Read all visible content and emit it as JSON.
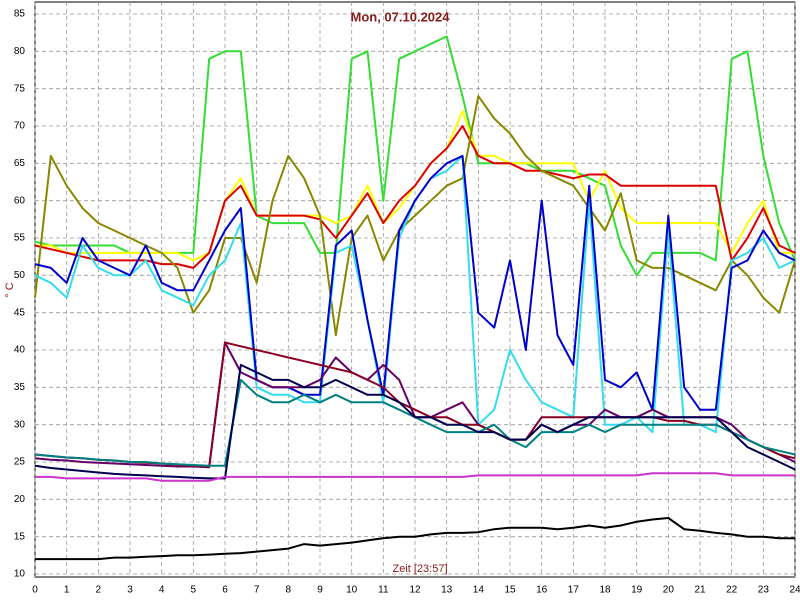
{
  "chart_data": {
    "type": "line",
    "title": "Mon, 07.10.2024",
    "y_label": "° C",
    "x_label": "Zeit [23:57]",
    "xlim": [
      0,
      24
    ],
    "ylim": [
      10,
      85
    ],
    "xticks": [
      0,
      1,
      2,
      3,
      4,
      5,
      6,
      7,
      8,
      9,
      10,
      11,
      12,
      13,
      14,
      15,
      16,
      17,
      18,
      19,
      20,
      21,
      22,
      23,
      24
    ],
    "yticks": [
      10,
      15,
      20,
      25,
      30,
      35,
      40,
      45,
      50,
      55,
      60,
      65,
      70,
      75,
      80,
      85
    ],
    "grid": true,
    "x": [
      0,
      0.5,
      1,
      1.5,
      2,
      2.5,
      3,
      3.5,
      4,
      4.5,
      5,
      5.5,
      6,
      6.5,
      7,
      7.5,
      8,
      8.5,
      9,
      9.5,
      10,
      10.5,
      11,
      11.5,
      12,
      12.5,
      13,
      13.5,
      14,
      14.5,
      15,
      15.5,
      16,
      16.5,
      17,
      17.5,
      18,
      18.5,
      19,
      19.5,
      20,
      20.5,
      21,
      21.5,
      22,
      22.5,
      23,
      23.5,
      24
    ],
    "series": [
      {
        "color": "#33dd33",
        "values": [
          54.5,
          54,
          54,
          54,
          54,
          54,
          53,
          53,
          53,
          53,
          53,
          79,
          80,
          80,
          58,
          57,
          57,
          57,
          53,
          53,
          79,
          80,
          60,
          79,
          80,
          81,
          82,
          74,
          65,
          65,
          65,
          65,
          64,
          64,
          64,
          63,
          62,
          54,
          50,
          53,
          53,
          53,
          53,
          52,
          79,
          80,
          66,
          57,
          52
        ]
      },
      {
        "color": "#ffff00",
        "values": [
          54,
          54,
          53,
          53,
          53,
          53,
          53,
          53,
          53,
          53,
          52,
          53,
          60,
          63,
          58,
          58,
          58,
          58,
          58,
          57,
          58,
          62,
          57,
          59,
          62,
          65,
          67,
          72,
          66,
          66,
          65,
          65,
          65,
          65,
          65,
          60,
          64,
          59,
          57,
          57,
          57,
          57,
          57,
          57,
          53,
          57,
          60,
          53,
          53
        ]
      },
      {
        "color": "#dd0000",
        "values": [
          54,
          53.5,
          53,
          52.5,
          52,
          52,
          52,
          52,
          51.5,
          51.5,
          51,
          53,
          60,
          62,
          58,
          58,
          58,
          58,
          57.5,
          55,
          58,
          61,
          57,
          60,
          62,
          65,
          67,
          70,
          66,
          65,
          65,
          64,
          64,
          63.5,
          63,
          63.5,
          63.5,
          62,
          62,
          62,
          62,
          62,
          62,
          62,
          52,
          55,
          59,
          54,
          53
        ]
      },
      {
        "color": "#888800",
        "values": [
          47,
          66,
          62,
          59,
          57,
          56,
          55,
          54,
          53,
          51,
          45,
          48,
          55,
          55,
          49,
          60,
          66,
          63,
          58,
          42,
          55,
          58,
          52,
          56,
          58,
          60,
          62,
          63,
          74,
          71,
          69,
          66,
          64,
          63,
          62,
          59,
          56,
          61,
          52,
          51,
          51,
          50,
          49,
          48,
          52,
          50,
          47,
          45,
          52
        ]
      },
      {
        "color": "#33ddee",
        "values": [
          50,
          49,
          47,
          54,
          51,
          50,
          50,
          52,
          48,
          47,
          46,
          50,
          52,
          57,
          35,
          34,
          34,
          33,
          33,
          53,
          54,
          44,
          33,
          55,
          60,
          63,
          64,
          66,
          30,
          32,
          40,
          36,
          33,
          32,
          31,
          60,
          30,
          30,
          31,
          29,
          56,
          30,
          30,
          29,
          52,
          53,
          55,
          51,
          52
        ]
      },
      {
        "color": "#0000cc",
        "values": [
          51.5,
          51,
          49,
          55,
          52,
          51,
          50,
          54,
          49,
          48,
          48,
          52,
          56,
          59,
          36,
          35,
          35,
          34,
          34,
          54,
          56,
          44,
          34,
          56,
          60,
          63,
          65,
          66,
          45,
          43,
          52,
          40,
          60,
          42,
          38,
          62,
          36,
          35,
          37,
          32,
          58,
          35,
          32,
          32,
          51,
          52,
          56,
          53,
          52
        ]
      },
      {
        "color": "#660066",
        "values": [
          25.5,
          25.3,
          25.2,
          25,
          24.9,
          24.8,
          24.7,
          24.6,
          24.5,
          24.4,
          24.4,
          24.3,
          41,
          37,
          36,
          35,
          35,
          35,
          36,
          39,
          37,
          36,
          38,
          36,
          31,
          31,
          32,
          33,
          30,
          29,
          28,
          28,
          30,
          29,
          30,
          30,
          32,
          31,
          31,
          32,
          31,
          31,
          31,
          31,
          30,
          28,
          27,
          26,
          25
        ]
      },
      {
        "color": "#880022",
        "values": [
          26,
          25.8,
          25.6,
          25.5,
          25.3,
          25.2,
          25,
          24.9,
          24.8,
          24.6,
          24.5,
          24.4,
          41,
          40.5,
          40,
          39.5,
          39,
          38.5,
          38,
          37.5,
          37,
          36,
          35,
          33,
          32,
          31,
          31,
          30,
          30,
          29,
          28,
          28,
          31,
          31,
          31,
          31,
          31,
          31,
          31,
          31,
          30.5,
          30.5,
          30,
          30,
          29,
          28,
          27,
          26,
          25.5
        ]
      },
      {
        "color": "#008080",
        "values": [
          26,
          25.8,
          25.6,
          25.5,
          25.3,
          25.2,
          25,
          25,
          24.8,
          24.7,
          24.6,
          24.5,
          24.5,
          36,
          34,
          33,
          33,
          34,
          33,
          34,
          33,
          33,
          33,
          32,
          31,
          30,
          29,
          29,
          29,
          30,
          28,
          27,
          29,
          29,
          29,
          30,
          29,
          30,
          30,
          30,
          30,
          30,
          30,
          30,
          29,
          28,
          27,
          26.5,
          26
        ]
      },
      {
        "color": "#000050",
        "values": [
          24.5,
          24.2,
          24,
          23.8,
          23.6,
          23.4,
          23.3,
          23.2,
          23.1,
          23,
          22.9,
          22.8,
          22.8,
          38,
          37,
          36,
          36,
          35,
          35,
          36,
          35,
          34,
          34,
          33,
          31,
          31,
          30,
          30,
          29,
          29,
          28,
          28,
          30,
          29,
          30,
          31,
          31,
          31,
          31,
          31,
          31,
          31,
          31,
          31,
          29,
          27,
          26,
          25,
          24
        ]
      },
      {
        "color": "#cc33cc",
        "values": [
          23,
          23,
          22.8,
          22.8,
          22.8,
          22.8,
          22.8,
          22.8,
          22.5,
          22.5,
          22.5,
          22.5,
          23,
          23,
          23,
          23,
          23,
          23,
          23,
          23,
          23,
          23,
          23,
          23,
          23,
          23,
          23,
          23,
          23.2,
          23.2,
          23.2,
          23.2,
          23.2,
          23.2,
          23.2,
          23.2,
          23.2,
          23.2,
          23.2,
          23.5,
          23.5,
          23.5,
          23.5,
          23.5,
          23.2,
          23.2,
          23.2,
          23.2,
          23.2
        ]
      },
      {
        "color": "#000000",
        "values": [
          12,
          12,
          12,
          12,
          12,
          12.2,
          12.2,
          12.3,
          12.4,
          12.5,
          12.5,
          12.6,
          12.7,
          12.8,
          13,
          13.2,
          13.4,
          14,
          13.8,
          14,
          14.2,
          14.5,
          14.8,
          15,
          15,
          15.3,
          15.5,
          15.5,
          15.6,
          16,
          16.2,
          16.2,
          16.2,
          16,
          16.2,
          16.5,
          16.2,
          16.5,
          17,
          17.3,
          17.5,
          16,
          15.8,
          15.5,
          15.3,
          15,
          15,
          14.8,
          14.8
        ]
      }
    ]
  }
}
